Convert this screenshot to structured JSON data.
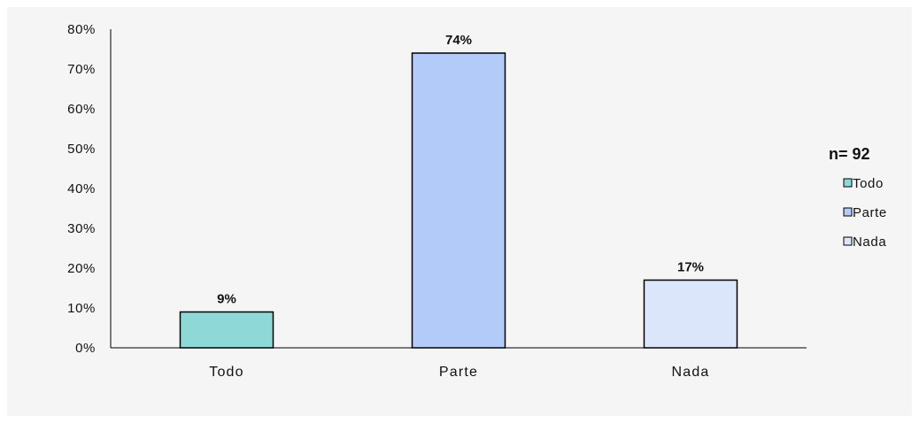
{
  "chart_data": {
    "type": "bar",
    "categories": [
      "Todo",
      "Parte",
      "Nada"
    ],
    "values": [
      9,
      74,
      17
    ],
    "value_labels": [
      "9%",
      "74%",
      "17%"
    ],
    "colors": [
      "#8fd8d8",
      "#b3cbf9",
      "#dce6fb"
    ],
    "ylim": [
      0,
      80
    ],
    "yticks": [
      0,
      10,
      20,
      30,
      40,
      50,
      60,
      70,
      80
    ],
    "ytick_labels": [
      "0%",
      "10%",
      "20%",
      "30%",
      "40%",
      "50%",
      "60%",
      "70%",
      "80%"
    ],
    "legend": {
      "title": "n= 92",
      "entries": [
        "Todo",
        "Parte",
        "Nada"
      ],
      "placement": "right"
    },
    "grid": false
  }
}
